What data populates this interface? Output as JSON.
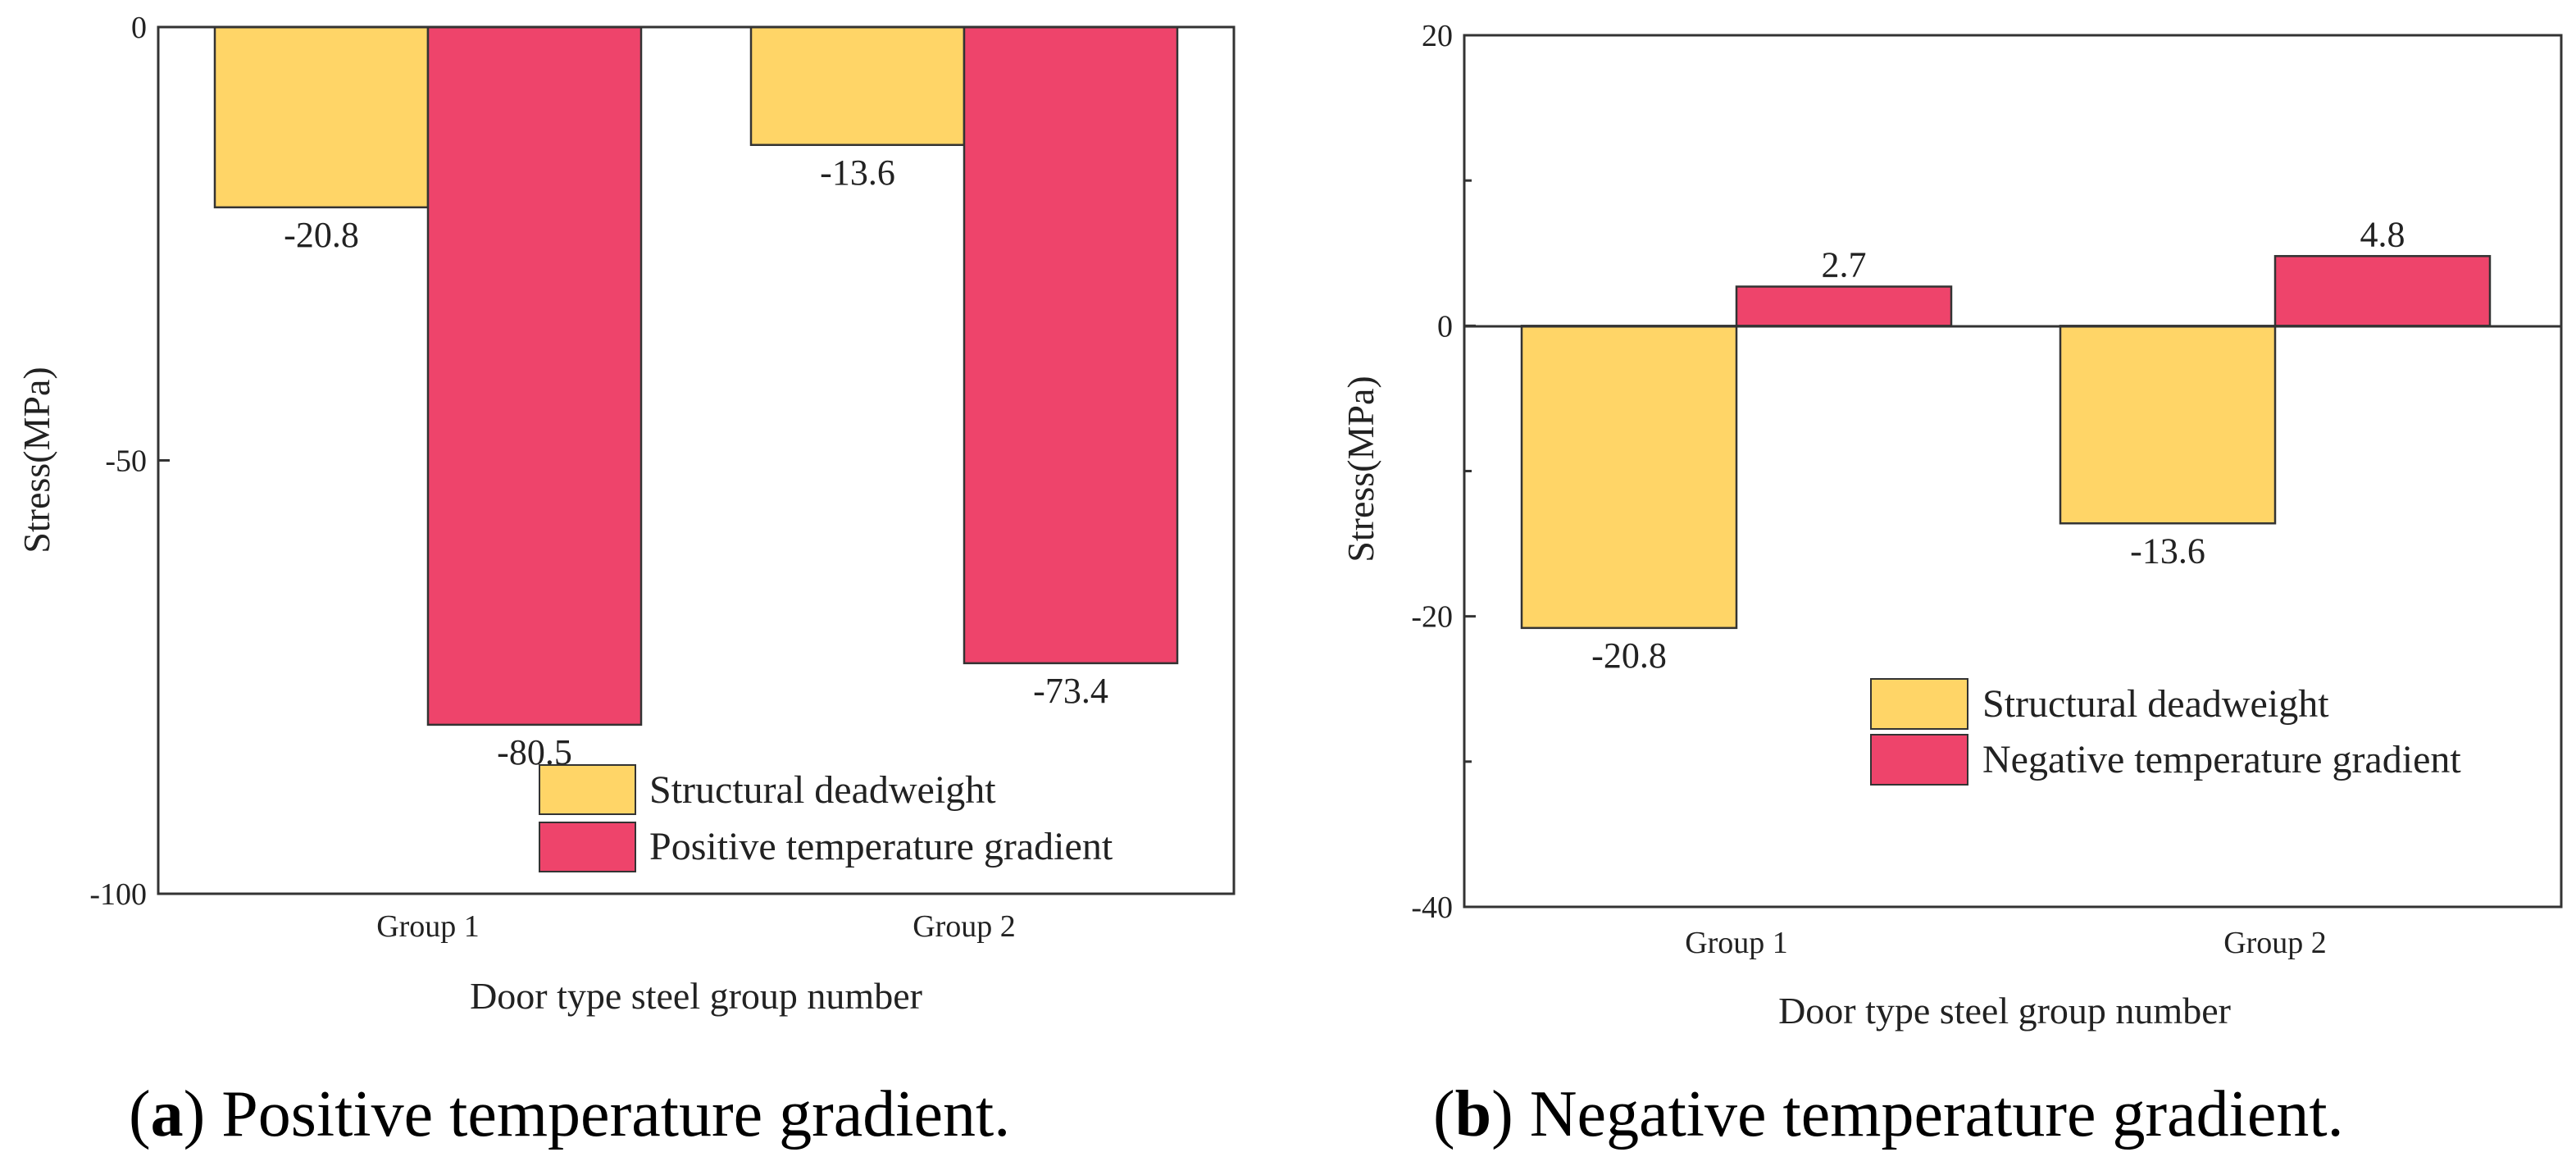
{
  "colors": {
    "structural": "#FFD567",
    "gradient": "#EE446B",
    "axis": "#333333"
  },
  "charts": [
    {
      "caption_letter": "a",
      "caption_text": "Positive temperature gradient."
    },
    {
      "caption_letter": "b",
      "caption_text": "Negative temperature gradient."
    }
  ],
  "chart_data": [
    {
      "type": "bar",
      "title": "",
      "xlabel": "Door type steel group number",
      "ylabel": "Stress(MPa)",
      "categories": [
        "Group 1",
        "Group 2"
      ],
      "ylim": [
        -100,
        0
      ],
      "yticks": [
        0,
        -50,
        -100
      ],
      "series": [
        {
          "name": "Structural deadweight",
          "values": [
            -20.8,
            -13.6
          ],
          "labels": [
            "-20.8",
            "-13.6"
          ]
        },
        {
          "name": "Positive temperature gradient",
          "values": [
            -80.5,
            -73.4
          ],
          "labels": [
            "-80.5",
            "-73.4"
          ]
        }
      ],
      "legend": "bottom-right"
    },
    {
      "type": "bar",
      "title": "",
      "xlabel": "Door type steel group number",
      "ylabel": "Stress(MPa)",
      "categories": [
        "Group 1",
        "Group 2"
      ],
      "ylim": [
        -40,
        20
      ],
      "yticks": [
        20,
        0,
        -20,
        -40
      ],
      "series": [
        {
          "name": "Structural deadweight",
          "values": [
            -20.8,
            -13.6
          ],
          "labels": [
            "-20.8",
            "-13.6"
          ]
        },
        {
          "name": "Negative temperature gradient",
          "values": [
            2.7,
            4.8
          ],
          "labels": [
            "2.7",
            "4.8"
          ]
        }
      ],
      "legend": "center-right"
    }
  ]
}
